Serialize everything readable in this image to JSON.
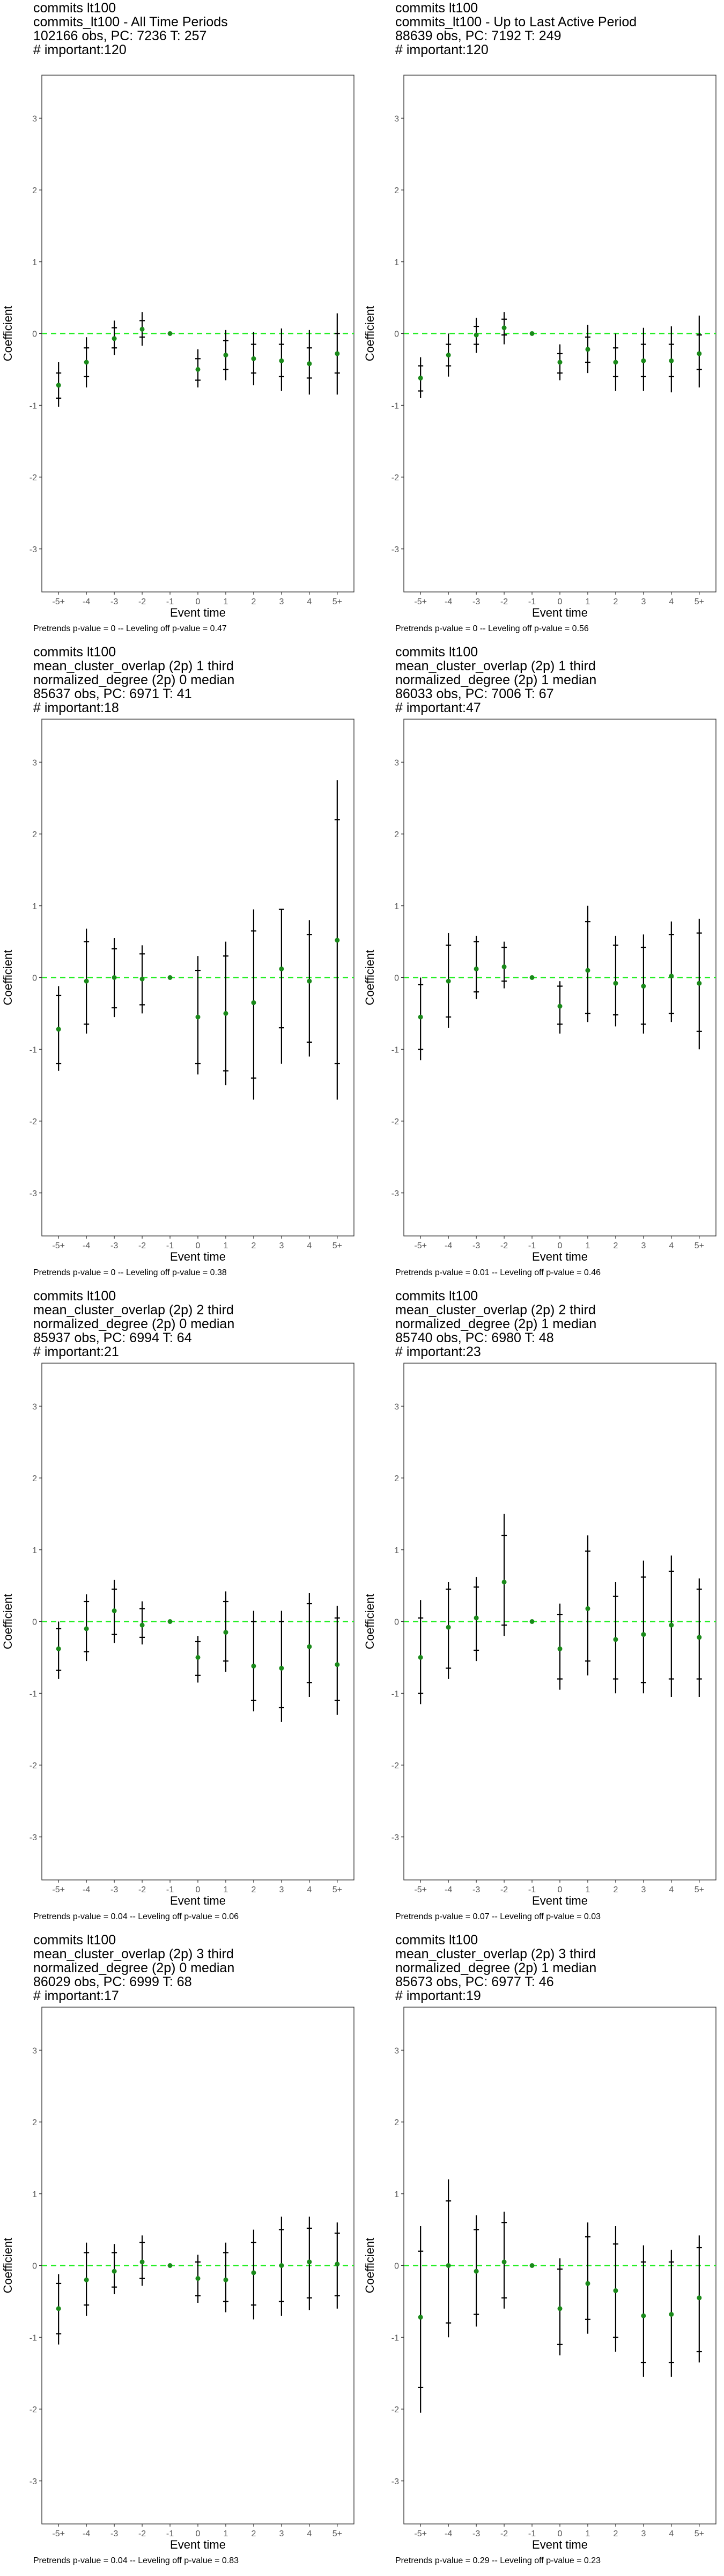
{
  "chart_data": [
    {
      "type": "errorbar",
      "title_lines": [
        "commits lt100",
        "commits_lt100 - All Time Periods",
        "102166 obs, PC: 7236 T: 257",
        "# important:120"
      ],
      "xlabel": "Event time",
      "ylabel": "Coefficient",
      "categories": [
        "-5+",
        "-4",
        "-3",
        "-2",
        "-1",
        "0",
        "1",
        "2",
        "3",
        "4",
        "5+"
      ],
      "ylim": [
        -3.6,
        3.6
      ],
      "yticks": [
        -3,
        -2,
        -1,
        0,
        1,
        2,
        3
      ],
      "estimates": [
        -0.72,
        -0.4,
        -0.07,
        0.06,
        0,
        -0.5,
        -0.3,
        -0.35,
        -0.38,
        -0.42,
        -0.28
      ],
      "ci_outer": [
        [
          -1.02,
          -0.4
        ],
        [
          -0.75,
          -0.05
        ],
        [
          -0.3,
          0.18
        ],
        [
          -0.17,
          0.3
        ],
        [
          0,
          0
        ],
        [
          -0.75,
          -0.22
        ],
        [
          -0.65,
          0.05
        ],
        [
          -0.72,
          0.02
        ],
        [
          -0.8,
          0.07
        ],
        [
          -0.85,
          0.05
        ],
        [
          -0.85,
          0.28
        ]
      ],
      "ci_inner": [
        [
          -0.9,
          -0.55
        ],
        [
          -0.6,
          -0.2
        ],
        [
          -0.2,
          0.08
        ],
        [
          -0.05,
          0.18
        ],
        [
          0,
          0
        ],
        [
          -0.65,
          -0.35
        ],
        [
          -0.5,
          -0.1
        ],
        [
          -0.55,
          -0.15
        ],
        [
          -0.6,
          -0.15
        ],
        [
          -0.62,
          -0.2
        ],
        [
          -0.55,
          0.0
        ]
      ],
      "reference_line": 0,
      "colors": {
        "point": "#1a8a1a",
        "zero_line": "#22ee22",
        "bar": "#000000"
      },
      "caption": "Pretrends p-value = 0 -- Leveling off p-value = 0.47"
    },
    {
      "type": "errorbar",
      "title_lines": [
        "commits lt100",
        "commits_lt100 - Up to Last Active Period",
        "88639 obs, PC: 7192 T: 249",
        "# important:120"
      ],
      "xlabel": "Event time",
      "ylabel": "Coefficient",
      "categories": [
        "-5+",
        "-4",
        "-3",
        "-2",
        "-1",
        "0",
        "1",
        "2",
        "3",
        "4",
        "5+"
      ],
      "ylim": [
        -3.6,
        3.6
      ],
      "yticks": [
        -3,
        -2,
        -1,
        0,
        1,
        2,
        3
      ],
      "estimates": [
        -0.62,
        -0.3,
        -0.02,
        0.08,
        0,
        -0.4,
        -0.22,
        -0.4,
        -0.38,
        -0.38,
        -0.28
      ],
      "ci_outer": [
        [
          -0.9,
          -0.33
        ],
        [
          -0.6,
          0.0
        ],
        [
          -0.27,
          0.22
        ],
        [
          -0.15,
          0.3
        ],
        [
          0,
          0
        ],
        [
          -0.65,
          -0.15
        ],
        [
          -0.55,
          0.12
        ],
        [
          -0.8,
          0.0
        ],
        [
          -0.8,
          0.08
        ],
        [
          -0.82,
          0.1
        ],
        [
          -0.75,
          0.25
        ]
      ],
      "ci_inner": [
        [
          -0.8,
          -0.45
        ],
        [
          -0.45,
          -0.15
        ],
        [
          -0.15,
          0.1
        ],
        [
          -0.02,
          0.2
        ],
        [
          0,
          0
        ],
        [
          -0.55,
          -0.28
        ],
        [
          -0.4,
          -0.05
        ],
        [
          -0.6,
          -0.2
        ],
        [
          -0.6,
          -0.15
        ],
        [
          -0.6,
          -0.15
        ],
        [
          -0.5,
          -0.02
        ]
      ],
      "reference_line": 0,
      "colors": {
        "point": "#1a8a1a",
        "zero_line": "#22ee22",
        "bar": "#000000"
      },
      "caption": "Pretrends p-value = 0 -- Leveling off p-value = 0.56"
    },
    {
      "type": "errorbar",
      "title_lines": [
        "commits lt100",
        "mean_cluster_overlap (2p) 1 third",
        "normalized_degree (2p) 0 median",
        "85637 obs, PC: 6971 T: 41",
        "# important:18"
      ],
      "xlabel": "Event time",
      "ylabel": "Coefficient",
      "categories": [
        "-5+",
        "-4",
        "-3",
        "-2",
        "-1",
        "0",
        "1",
        "2",
        "3",
        "4",
        "5+"
      ],
      "ylim": [
        -3.6,
        3.6
      ],
      "yticks": [
        -3,
        -2,
        -1,
        0,
        1,
        2,
        3
      ],
      "estimates": [
        -0.72,
        -0.05,
        0.0,
        -0.02,
        0,
        -0.55,
        -0.5,
        -0.35,
        0.12,
        -0.05,
        0.52
      ],
      "ci_outer": [
        [
          -1.3,
          -0.12
        ],
        [
          -0.78,
          0.68
        ],
        [
          -0.55,
          0.55
        ],
        [
          -0.5,
          0.45
        ],
        [
          0,
          0
        ],
        [
          -1.35,
          0.3
        ],
        [
          -1.5,
          0.5
        ],
        [
          -1.7,
          0.95
        ],
        [
          -1.2,
          0.95
        ],
        [
          -1.1,
          0.8
        ],
        [
          -1.7,
          2.75
        ]
      ],
      "ci_inner": [
        [
          -1.2,
          -0.25
        ],
        [
          -0.65,
          0.5
        ],
        [
          -0.42,
          0.4
        ],
        [
          -0.38,
          0.33
        ],
        [
          0,
          0
        ],
        [
          -1.2,
          0.1
        ],
        [
          -1.3,
          0.3
        ],
        [
          -1.4,
          0.65
        ],
        [
          -0.7,
          0.95
        ],
        [
          -0.9,
          0.6
        ],
        [
          -1.2,
          2.2
        ]
      ],
      "reference_line": 0,
      "colors": {
        "point": "#1a8a1a",
        "zero_line": "#22ee22",
        "bar": "#000000"
      },
      "caption": "Pretrends p-value = 0 -- Leveling off p-value = 0.38"
    },
    {
      "type": "errorbar",
      "title_lines": [
        "commits lt100",
        "mean_cluster_overlap (2p) 1 third",
        "normalized_degree (2p) 1 median",
        "86033 obs, PC: 7006 T: 67",
        "# important:47"
      ],
      "xlabel": "Event time",
      "ylabel": "Coefficient",
      "categories": [
        "-5+",
        "-4",
        "-3",
        "-2",
        "-1",
        "0",
        "1",
        "2",
        "3",
        "4",
        "5+"
      ],
      "ylim": [
        -3.6,
        3.6
      ],
      "yticks": [
        -3,
        -2,
        -1,
        0,
        1,
        2,
        3
      ],
      "estimates": [
        -0.55,
        -0.05,
        0.12,
        0.15,
        0,
        -0.4,
        0.1,
        -0.08,
        -0.12,
        0.02,
        -0.08
      ],
      "ci_outer": [
        [
          -1.15,
          0.0
        ],
        [
          -0.7,
          0.62
        ],
        [
          -0.3,
          0.58
        ],
        [
          -0.15,
          0.5
        ],
        [
          0,
          0
        ],
        [
          -0.78,
          -0.05
        ],
        [
          -0.62,
          1.0
        ],
        [
          -0.68,
          0.58
        ],
        [
          -0.78,
          0.6
        ],
        [
          -0.62,
          0.78
        ],
        [
          -1.0,
          0.82
        ]
      ],
      "ci_inner": [
        [
          -1.0,
          -0.1
        ],
        [
          -0.55,
          0.45
        ],
        [
          -0.2,
          0.5
        ],
        [
          -0.05,
          0.42
        ],
        [
          0,
          0
        ],
        [
          -0.65,
          -0.12
        ],
        [
          -0.5,
          0.78
        ],
        [
          -0.52,
          0.45
        ],
        [
          -0.65,
          0.42
        ],
        [
          -0.5,
          0.6
        ],
        [
          -0.75,
          0.62
        ]
      ],
      "reference_line": 0,
      "colors": {
        "point": "#1a8a1a",
        "zero_line": "#22ee22",
        "bar": "#000000"
      },
      "caption": "Pretrends p-value = 0.01 -- Leveling off p-value = 0.46"
    },
    {
      "type": "errorbar",
      "title_lines": [
        "commits lt100",
        "mean_cluster_overlap (2p) 2 third",
        "normalized_degree (2p) 0 median",
        "85937 obs, PC: 6994 T: 64",
        "# important:21"
      ],
      "xlabel": "Event time",
      "ylabel": "Coefficient",
      "categories": [
        "-5+",
        "-4",
        "-3",
        "-2",
        "-1",
        "0",
        "1",
        "2",
        "3",
        "4",
        "5+"
      ],
      "ylim": [
        -3.6,
        3.6
      ],
      "yticks": [
        -3,
        -2,
        -1,
        0,
        1,
        2,
        3
      ],
      "estimates": [
        -0.38,
        -0.1,
        0.15,
        -0.05,
        0,
        -0.5,
        -0.15,
        -0.62,
        -0.65,
        -0.35,
        -0.6
      ],
      "ci_outer": [
        [
          -0.8,
          0.0
        ],
        [
          -0.55,
          0.38
        ],
        [
          -0.3,
          0.58
        ],
        [
          -0.32,
          0.28
        ],
        [
          0,
          0
        ],
        [
          -0.85,
          -0.2
        ],
        [
          -0.7,
          0.42
        ],
        [
          -1.25,
          0.15
        ],
        [
          -1.4,
          0.15
        ],
        [
          -1.05,
          0.4
        ],
        [
          -1.3,
          0.22
        ]
      ],
      "ci_inner": [
        [
          -0.68,
          -0.1
        ],
        [
          -0.42,
          0.28
        ],
        [
          -0.18,
          0.45
        ],
        [
          -0.22,
          0.18
        ],
        [
          0,
          0
        ],
        [
          -0.75,
          -0.28
        ],
        [
          -0.55,
          0.28
        ],
        [
          -1.1,
          0.0
        ],
        [
          -1.2,
          0.0
        ],
        [
          -0.85,
          0.25
        ],
        [
          -1.1,
          0.05
        ]
      ],
      "reference_line": 0,
      "colors": {
        "point": "#1a8a1a",
        "zero_line": "#22ee22",
        "bar": "#000000"
      },
      "caption": "Pretrends p-value = 0.04 -- Leveling off p-value = 0.06"
    },
    {
      "type": "errorbar",
      "title_lines": [
        "commits lt100",
        "mean_cluster_overlap (2p) 2 third",
        "normalized_degree (2p) 1 median",
        "85740 obs, PC: 6980 T: 48",
        "# important:23"
      ],
      "xlabel": "Event time",
      "ylabel": "Coefficient",
      "categories": [
        "-5+",
        "-4",
        "-3",
        "-2",
        "-1",
        "0",
        "1",
        "2",
        "3",
        "4",
        "5+"
      ],
      "ylim": [
        -3.6,
        3.6
      ],
      "yticks": [
        -3,
        -2,
        -1,
        0,
        1,
        2,
        3
      ],
      "estimates": [
        -0.5,
        -0.08,
        0.05,
        0.55,
        0,
        -0.38,
        0.18,
        -0.25,
        -0.18,
        -0.05,
        -0.22
      ],
      "ci_outer": [
        [
          -1.15,
          0.3
        ],
        [
          -0.8,
          0.55
        ],
        [
          -0.55,
          0.62
        ],
        [
          -0.2,
          1.5
        ],
        [
          0,
          0
        ],
        [
          -0.95,
          0.25
        ],
        [
          -0.75,
          1.2
        ],
        [
          -1.0,
          0.55
        ],
        [
          -1.0,
          0.85
        ],
        [
          -1.05,
          0.92
        ],
        [
          -1.05,
          0.6
        ]
      ],
      "ci_inner": [
        [
          -1.0,
          0.05
        ],
        [
          -0.65,
          0.45
        ],
        [
          -0.4,
          0.48
        ],
        [
          -0.05,
          1.2
        ],
        [
          0,
          0
        ],
        [
          -0.8,
          0.1
        ],
        [
          -0.55,
          0.98
        ],
        [
          -0.8,
          0.35
        ],
        [
          -0.85,
          0.62
        ],
        [
          -0.8,
          0.7
        ],
        [
          -0.8,
          0.45
        ]
      ],
      "reference_line": 0,
      "colors": {
        "point": "#1a8a1a",
        "zero_line": "#22ee22",
        "bar": "#000000"
      },
      "caption": "Pretrends p-value = 0.07 -- Leveling off p-value = 0.03"
    },
    {
      "type": "errorbar",
      "title_lines": [
        "commits lt100",
        "mean_cluster_overlap (2p) 3 third",
        "normalized_degree (2p) 0 median",
        "86029 obs, PC: 6999 T: 68",
        "# important:17"
      ],
      "xlabel": "Event time",
      "ylabel": "Coefficient",
      "categories": [
        "-5+",
        "-4",
        "-3",
        "-2",
        "-1",
        "0",
        "1",
        "2",
        "3",
        "4",
        "5+"
      ],
      "ylim": [
        -3.6,
        3.6
      ],
      "yticks": [
        -3,
        -2,
        -1,
        0,
        1,
        2,
        3
      ],
      "estimates": [
        -0.6,
        -0.2,
        -0.08,
        0.05,
        0,
        -0.18,
        -0.2,
        -0.1,
        0.0,
        0.05,
        0.02
      ],
      "ci_outer": [
        [
          -1.1,
          -0.12
        ],
        [
          -0.7,
          0.32
        ],
        [
          -0.4,
          0.3
        ],
        [
          -0.28,
          0.42
        ],
        [
          0,
          0
        ],
        [
          -0.52,
          0.15
        ],
        [
          -0.65,
          0.32
        ],
        [
          -0.75,
          0.5
        ],
        [
          -0.7,
          0.68
        ],
        [
          -0.62,
          0.68
        ],
        [
          -0.6,
          0.6
        ]
      ],
      "ci_inner": [
        [
          -0.95,
          -0.25
        ],
        [
          -0.55,
          0.18
        ],
        [
          -0.3,
          0.18
        ],
        [
          -0.18,
          0.32
        ],
        [
          0,
          0
        ],
        [
          -0.42,
          0.05
        ],
        [
          -0.5,
          0.18
        ],
        [
          -0.55,
          0.32
        ],
        [
          -0.5,
          0.5
        ],
        [
          -0.45,
          0.52
        ],
        [
          -0.42,
          0.45
        ]
      ],
      "reference_line": 0,
      "colors": {
        "point": "#1a8a1a",
        "zero_line": "#22ee22",
        "bar": "#000000"
      },
      "caption": "Pretrends p-value = 0.04 -- Leveling off p-value = 0.83"
    },
    {
      "type": "errorbar",
      "title_lines": [
        "commits lt100",
        "mean_cluster_overlap (2p) 3 third",
        "normalized_degree (2p) 1 median",
        "85673 obs, PC: 6977 T: 46",
        "# important:19"
      ],
      "xlabel": "Event time",
      "ylabel": "Coefficient",
      "categories": [
        "-5+",
        "-4",
        "-3",
        "-2",
        "-1",
        "0",
        "1",
        "2",
        "3",
        "4",
        "5+"
      ],
      "ylim": [
        -3.6,
        3.6
      ],
      "yticks": [
        -3,
        -2,
        -1,
        0,
        1,
        2,
        3
      ],
      "estimates": [
        -0.72,
        0.0,
        -0.08,
        0.05,
        0,
        -0.6,
        -0.25,
        -0.35,
        -0.7,
        -0.68,
        -0.45
      ],
      "ci_outer": [
        [
          -2.05,
          0.55
        ],
        [
          -1.0,
          1.2
        ],
        [
          -0.85,
          0.7
        ],
        [
          -0.6,
          0.75
        ],
        [
          0,
          0
        ],
        [
          -1.25,
          0.1
        ],
        [
          -0.95,
          0.6
        ],
        [
          -1.2,
          0.55
        ],
        [
          -1.55,
          0.28
        ],
        [
          -1.55,
          0.22
        ],
        [
          -1.35,
          0.42
        ]
      ],
      "ci_inner": [
        [
          -1.7,
          0.2
        ],
        [
          -0.8,
          0.9
        ],
        [
          -0.68,
          0.5
        ],
        [
          -0.45,
          0.6
        ],
        [
          0,
          0
        ],
        [
          -1.1,
          -0.05
        ],
        [
          -0.75,
          0.4
        ],
        [
          -1.0,
          0.3
        ],
        [
          -1.35,
          0.05
        ],
        [
          -1.35,
          0.05
        ],
        [
          -1.2,
          0.25
        ]
      ],
      "reference_line": 0,
      "colors": {
        "point": "#1a8a1a",
        "zero_line": "#22ee22",
        "bar": "#000000"
      },
      "caption": "Pretrends p-value = 0.29 -- Leveling off p-value = 0.23"
    }
  ]
}
